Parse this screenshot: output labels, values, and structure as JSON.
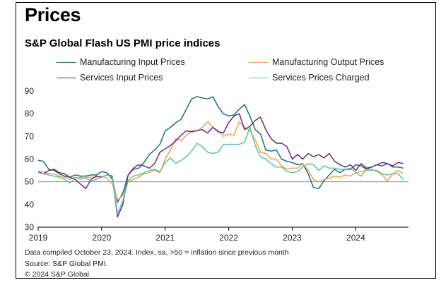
{
  "title": "Prices",
  "subtitle": "S&P Global Flash US PMI price indices",
  "notes": [
    "Data compiled October 23, 2024. Index, sa, >50 = inflation since previous month",
    "Source: S&P Global PMI.",
    "© 2024 S&P Global."
  ],
  "chart_data": {
    "type": "line",
    "ylim": [
      30,
      90
    ],
    "yticks": [
      30,
      40,
      50,
      60,
      70,
      80,
      90
    ],
    "xlim": [
      2019.0,
      2024.83
    ],
    "xticks": [
      {
        "value": 2019.0,
        "label": "2019"
      },
      {
        "value": 2020.0,
        "label": "2020"
      },
      {
        "value": 2021.0,
        "label": "2021"
      },
      {
        "value": 2022.0,
        "label": "2022"
      },
      {
        "value": 2023.0,
        "label": "2023"
      },
      {
        "value": 2024.0,
        "label": "2024"
      }
    ],
    "reference_line": 50,
    "x": [
      "2019-01",
      "2019-02",
      "2019-03",
      "2019-04",
      "2019-05",
      "2019-06",
      "2019-07",
      "2019-08",
      "2019-09",
      "2019-10",
      "2019-11",
      "2019-12",
      "2020-01",
      "2020-02",
      "2020-03",
      "2020-04",
      "2020-05",
      "2020-06",
      "2020-07",
      "2020-08",
      "2020-09",
      "2020-10",
      "2020-11",
      "2020-12",
      "2021-01",
      "2021-02",
      "2021-03",
      "2021-04",
      "2021-05",
      "2021-06",
      "2021-07",
      "2021-08",
      "2021-09",
      "2021-10",
      "2021-11",
      "2021-12",
      "2022-01",
      "2022-02",
      "2022-03",
      "2022-04",
      "2022-05",
      "2022-06",
      "2022-07",
      "2022-08",
      "2022-09",
      "2022-10",
      "2022-11",
      "2022-12",
      "2023-01",
      "2023-02",
      "2023-03",
      "2023-04",
      "2023-05",
      "2023-06",
      "2023-07",
      "2023-08",
      "2023-09",
      "2023-10",
      "2023-11",
      "2023-12",
      "2024-01",
      "2024-02",
      "2024-03",
      "2024-04",
      "2024-05",
      "2024-06",
      "2024-07",
      "2024-08",
      "2024-09",
      "2024-10"
    ],
    "series": [
      {
        "name": "Manufacturing Input Prices",
        "color": "#1f6f7e",
        "values": [
          59.5,
          59.0,
          55.5,
          55.0,
          53.5,
          52.5,
          52.0,
          53.0,
          52.5,
          52.5,
          53.0,
          53.0,
          54.5,
          54.0,
          51.0,
          41.0,
          45.0,
          53.0,
          55.5,
          56.0,
          58.5,
          62.0,
          64.0,
          66.5,
          72.5,
          74.0,
          76.0,
          77.5,
          82.0,
          86.5,
          87.5,
          87.0,
          86.5,
          87.5,
          83.0,
          80.0,
          79.0,
          79.5,
          82.0,
          84.0,
          79.0,
          73.0,
          71.0,
          64.0,
          63.5,
          64.0,
          60.0,
          59.0,
          58.5,
          57.5,
          58.0,
          53.5,
          47.5,
          47.0,
          50.5,
          53.0,
          55.5,
          54.0,
          55.5,
          55.5,
          57.5,
          57.0,
          55.5,
          56.5,
          57.5,
          57.0,
          58.0,
          56.5,
          56.5,
          56.0
        ]
      },
      {
        "name": "Manufacturing Output Prices",
        "color": "#f5a04a",
        "values": [
          54.0,
          54.5,
          53.5,
          53.5,
          52.5,
          52.0,
          51.0,
          52.0,
          51.0,
          52.0,
          52.0,
          52.0,
          52.5,
          51.5,
          49.0,
          42.0,
          44.0,
          50.0,
          51.0,
          52.0,
          53.5,
          54.0,
          55.0,
          54.0,
          60.0,
          64.0,
          69.0,
          68.0,
          70.5,
          72.5,
          72.5,
          74.0,
          76.5,
          74.0,
          72.5,
          70.0,
          71.0,
          70.5,
          76.5,
          74.0,
          72.5,
          68.5,
          63.0,
          62.5,
          60.0,
          60.0,
          57.0,
          55.5,
          56.0,
          56.0,
          58.0,
          55.0,
          51.0,
          50.0,
          51.0,
          51.5,
          52.5,
          52.0,
          53.0,
          52.5,
          54.0,
          54.5,
          55.0,
          55.5,
          54.5,
          53.0,
          50.5,
          53.5,
          55.0,
          53.5
        ]
      },
      {
        "name": "Services Input Prices",
        "color": "#6b2a7a",
        "values": [
          54.5,
          53.5,
          55.0,
          55.5,
          54.0,
          53.5,
          52.0,
          51.0,
          49.0,
          47.0,
          51.0,
          52.5,
          52.0,
          53.0,
          52.5,
          34.5,
          40.0,
          53.0,
          56.0,
          57.5,
          57.0,
          56.0,
          58.0,
          63.0,
          64.5,
          66.0,
          68.0,
          70.5,
          72.5,
          72.0,
          72.5,
          73.0,
          71.5,
          74.0,
          72.0,
          71.5,
          76.0,
          79.0,
          80.0,
          73.0,
          74.5,
          77.0,
          78.5,
          73.0,
          69.0,
          67.0,
          67.0,
          65.5,
          60.0,
          62.0,
          60.0,
          62.5,
          61.0,
          62.0,
          60.5,
          62.5,
          59.0,
          57.5,
          56.5,
          57.5,
          55.0,
          58.0,
          56.0,
          56.5,
          57.5,
          58.5,
          58.0,
          57.0,
          58.5,
          58.0
        ]
      },
      {
        "name": "Services Prices Charged",
        "color": "#5fc4a0",
        "values": [
          54.0,
          53.5,
          53.0,
          52.5,
          52.0,
          51.0,
          49.5,
          51.5,
          52.0,
          51.5,
          50.5,
          51.0,
          52.0,
          53.0,
          52.0,
          36.0,
          41.5,
          50.5,
          52.5,
          53.0,
          54.0,
          55.0,
          55.5,
          54.5,
          58.5,
          60.5,
          58.0,
          59.5,
          61.0,
          63.5,
          67.0,
          65.5,
          63.0,
          62.5,
          63.0,
          66.5,
          66.5,
          66.5,
          66.5,
          67.5,
          74.0,
          66.0,
          61.0,
          60.0,
          58.0,
          56.5,
          56.5,
          54.5,
          54.0,
          54.5,
          56.5,
          58.0,
          57.5,
          55.0,
          57.0,
          56.0,
          56.0,
          55.5,
          55.5,
          56.0,
          54.0,
          52.5,
          55.5,
          55.0,
          55.0,
          53.5,
          53.0,
          53.5,
          53.5,
          51.0
        ]
      }
    ]
  }
}
